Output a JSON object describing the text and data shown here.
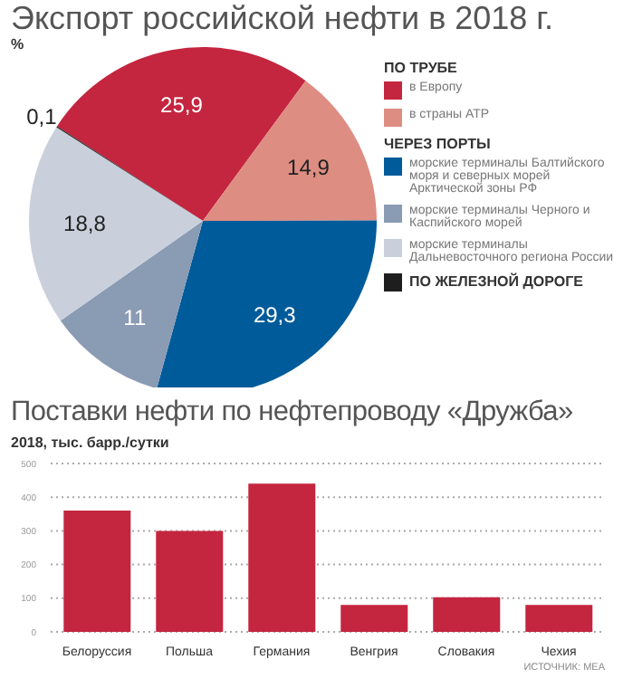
{
  "chart_data": [
    {
      "type": "pie",
      "title": "Экспорт российской нефти в 2018 г.",
      "subtitle": "%",
      "legend": "right",
      "categories": [
        "в Европу",
        "в страны АТР",
        "морские терминалы Балтийского моря и северных морей Арктической зоны РФ",
        "морские терминалы Черного и Каспийского морей",
        "морские терминалы Дальневосточного региона России",
        "ПО ЖЕЛЕЗНОЙ ДОРОГЕ"
      ],
      "values": [
        25.9,
        14.9,
        29.3,
        11,
        18.8,
        0.1
      ],
      "value_labels": [
        "25,9",
        "14,9",
        "29,3",
        "11",
        "18,8",
        "0,1"
      ],
      "colors": [
        "#c4253f",
        "#de8d82",
        "#005b9a",
        "#8a9bb4",
        "#c9d0dc",
        "#1e1e1e"
      ],
      "annotations": [
        "ПО ТРУБЕ",
        "ЧЕРЕЗ ПОРТЫ"
      ]
    },
    {
      "type": "bar",
      "title": "Поставки нефти по нефтепроводу «Дружба»",
      "subtitle": "2018, тыс. барр./сутки",
      "categories": [
        "Белоруссия",
        "Польша",
        "Германия",
        "Венгрия",
        "Словакия",
        "Чехия"
      ],
      "values": [
        360,
        300,
        440,
        80,
        103,
        80
      ],
      "color": "#c4253f",
      "ylim": [
        0,
        500
      ],
      "yticks": [
        0,
        100,
        200,
        300,
        400,
        500
      ],
      "grid": "y",
      "annotations": [
        "ИСТОЧНИК: МЕА"
      ]
    }
  ]
}
